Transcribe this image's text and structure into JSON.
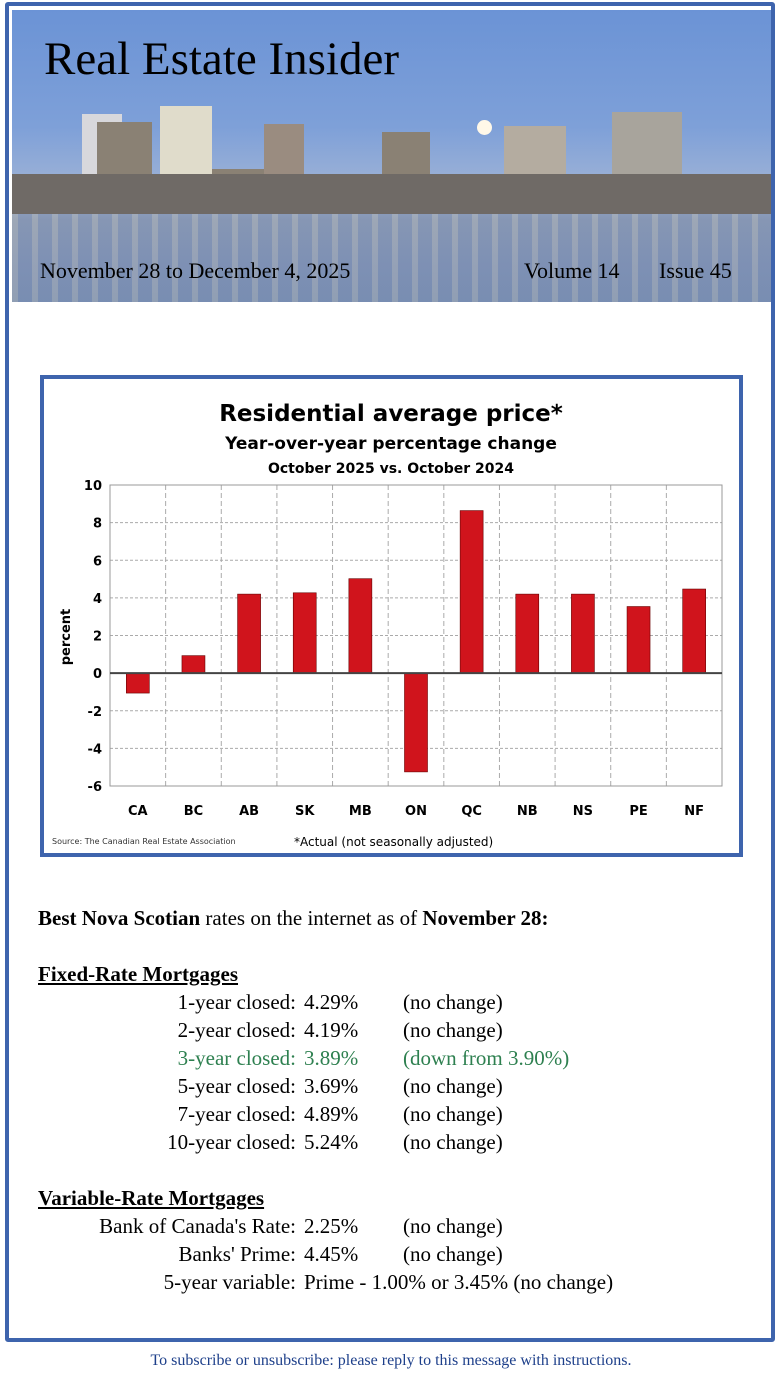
{
  "header": {
    "title": "Real Estate Insider",
    "dates": "November 28 to December 4, 2025",
    "volume": "Volume 14",
    "issue": "Issue 45"
  },
  "chart_data": {
    "type": "bar",
    "title": "Residential average price*",
    "subtitle": "Year-over-year percentage change",
    "subtitle2": "October 2025 vs. October 2024",
    "ylabel": "percent",
    "xlabel": "",
    "ylim": [
      -6,
      10
    ],
    "yticks": [
      10,
      8,
      6,
      4,
      2,
      0,
      -2,
      -4,
      -6
    ],
    "grid": true,
    "categories": [
      "CA",
      "BC",
      "AB",
      "SK",
      "MB",
      "ON",
      "QC",
      "NB",
      "NS",
      "PE",
      "NF"
    ],
    "values": [
      -1.06,
      0.93,
      4.2,
      4.27,
      5.02,
      -5.25,
      8.64,
      4.2,
      4.2,
      3.54,
      4.47
    ],
    "source": "Source: The Canadian Real Estate Association",
    "footnote": "*Actual (not seasonally adjusted)",
    "color": "#d0141c"
  },
  "rates": {
    "intro_bold1": "Best Nova Scotian",
    "intro_mid": " rates on the internet as of ",
    "intro_bold2": "November 28:",
    "fixed_title": "Fixed-Rate Mortgages",
    "fixed": [
      {
        "label": "1-year closed:",
        "rate": "4.29%",
        "note": "(no change)"
      },
      {
        "label": "2-year closed:",
        "rate": "4.19%",
        "note": "(no change)"
      },
      {
        "label": "3-year closed:",
        "rate": "3.89%",
        "note": "(down from 3.90%)"
      },
      {
        "label": "5-year closed:",
        "rate": "3.69%",
        "note": "(no change)"
      },
      {
        "label": "7-year closed:",
        "rate": "4.89%",
        "note": "(no change)"
      },
      {
        "label": "10-year closed:",
        "rate": "5.24%",
        "note": "(no change)"
      }
    ],
    "variable_title": "Variable-Rate Mortgages",
    "variable": [
      {
        "label": "Bank of Canada's Rate:",
        "rate": "2.25%",
        "note": "(no change)"
      },
      {
        "label": "Banks' Prime:",
        "rate": "4.45%",
        "note": "(no change)"
      },
      {
        "label": "5-year variable:",
        "rate": "Prime - 1.00% or 3.45% (no change)",
        "note": ""
      }
    ]
  },
  "footer": "To subscribe or unsubscribe: please reply to this message with instructions."
}
